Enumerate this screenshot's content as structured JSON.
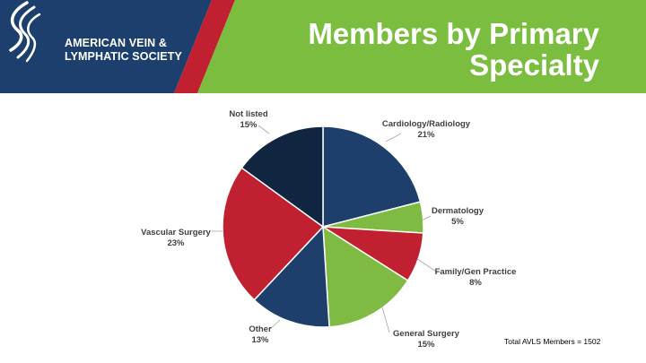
{
  "header": {
    "org_line1": "AMERICAN VEIN &",
    "org_line2": "LYMPHATIC SOCIETY",
    "title_line1": "Members by Primary",
    "title_line2": "Specialty",
    "colors": {
      "navy": "#1d3f6e",
      "red": "#c0202f",
      "green": "#7bbd3f"
    }
  },
  "chart_data": {
    "type": "pie",
    "slices": [
      {
        "label": "Cardiology/Radiology",
        "value": 21,
        "value_label": "21%",
        "color": "#1e3f6c"
      },
      {
        "label": "Dermatology",
        "value": 5,
        "value_label": "5%",
        "color": "#7fbb42"
      },
      {
        "label": "Family/Gen Practice",
        "value": 8,
        "value_label": "8%",
        "color": "#c0202f"
      },
      {
        "label": "General Surgery",
        "value": 15,
        "value_label": "15%",
        "color": "#7fbb42"
      },
      {
        "label": "Other",
        "value": 13,
        "value_label": "13%",
        "color": "#1e3f6c"
      },
      {
        "label": "Vascular Surgery",
        "value": 23,
        "value_label": "23%",
        "color": "#c0202f"
      },
      {
        "label": "Not listed",
        "value": 15,
        "value_label": "15%",
        "color": "#10253f"
      }
    ],
    "start": "12 o'clock",
    "direction": "clockwise",
    "legend": "none"
  },
  "note": "Total AVLS Members = 1502"
}
